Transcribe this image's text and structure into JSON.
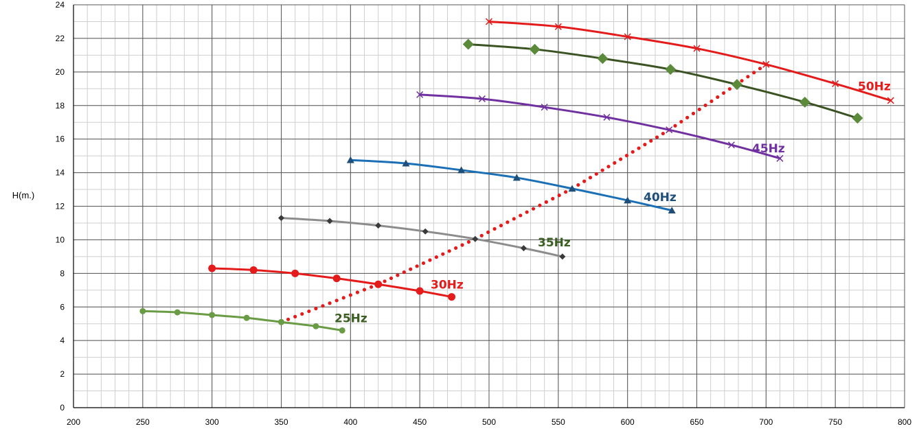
{
  "chart_data": {
    "type": "line",
    "title": "",
    "xlabel": "",
    "ylabel": "H(m.)",
    "xlim": [
      200,
      800
    ],
    "ylim": [
      0,
      24
    ],
    "x_major_step": 50,
    "y_major_step": 2,
    "x_minor_step": 10,
    "y_minor_step": 1,
    "grid": true,
    "x_ticks": [
      "200",
      "250",
      "300",
      "350",
      "400",
      "450",
      "500",
      "550",
      "600",
      "650",
      "700",
      "750",
      "800"
    ],
    "y_ticks": [
      "0",
      "2",
      "4",
      "6",
      "8",
      "10",
      "12",
      "14",
      "16",
      "18",
      "20",
      "22",
      "24"
    ],
    "series": [
      {
        "name": "25Hz",
        "color": "#6a9b45",
        "label_color": "#3b5f22",
        "marker": "circle",
        "label_anchor": [
          487,
          5.1
        ],
        "points": [
          [
            250,
            5.75
          ],
          [
            275,
            5.68
          ],
          [
            300,
            5.52
          ],
          [
            325,
            5.35
          ],
          [
            350,
            5.1
          ],
          [
            375,
            4.85
          ],
          [
            394,
            4.6
          ]
        ]
      },
      {
        "name": "30Hz",
        "color": "#e41b1b",
        "label_color": "#e41b1b",
        "marker": "circle-big",
        "label_anchor": [
          627,
          7.1
        ],
        "points": [
          [
            300,
            8.3
          ],
          [
            330,
            8.2
          ],
          [
            360,
            8.0
          ],
          [
            390,
            7.7
          ],
          [
            420,
            7.35
          ],
          [
            450,
            6.95
          ],
          [
            473,
            6.6
          ]
        ]
      },
      {
        "name": "35Hz",
        "color": "#8c8c8c",
        "label_color": "#3b5f22",
        "marker": "diamond-small",
        "label_anchor": [
          783,
          9.6
        ],
        "points": [
          [
            350,
            11.3
          ],
          [
            385,
            11.12
          ],
          [
            420,
            10.85
          ],
          [
            454,
            10.5
          ],
          [
            490,
            10.05
          ],
          [
            525,
            9.5
          ],
          [
            553,
            9.0
          ]
        ]
      },
      {
        "name": "40Hz",
        "color": "#1a6fb5",
        "label_color": "#1f4e79",
        "marker": "triangle",
        "label_anchor": [
          937,
          12.3
        ],
        "points": [
          [
            400,
            14.75
          ],
          [
            440,
            14.55
          ],
          [
            480,
            14.15
          ],
          [
            520,
            13.7
          ],
          [
            560,
            13.05
          ],
          [
            600,
            12.35
          ],
          [
            632,
            11.75
          ]
        ]
      },
      {
        "name": "45Hz",
        "color": "#7030a0",
        "label_color": "#7030a0",
        "marker": "x",
        "label_anchor": [
          1095,
          15.2
        ],
        "points": [
          [
            450,
            18.65
          ],
          [
            495,
            18.4
          ],
          [
            540,
            17.9
          ],
          [
            585,
            17.3
          ],
          [
            630,
            16.55
          ],
          [
            675,
            15.65
          ],
          [
            710,
            14.85
          ]
        ]
      },
      {
        "name": "",
        "color": "#3b5323",
        "label_color": "#3b5323",
        "marker": "diamond-big",
        "points": [
          [
            485,
            21.65
          ],
          [
            533,
            21.35
          ],
          [
            582,
            20.8
          ],
          [
            631,
            20.15
          ],
          [
            679,
            19.25
          ],
          [
            728,
            18.2
          ],
          [
            766,
            17.25
          ]
        ]
      },
      {
        "name": "50Hz",
        "color": "#e41b1b",
        "label_color": "#e41b1b",
        "marker": "x",
        "label_anchor": [
          1249,
          18.9
        ],
        "points": [
          [
            500,
            23.0
          ],
          [
            550,
            22.7
          ],
          [
            600,
            22.1
          ],
          [
            650,
            21.4
          ],
          [
            700,
            20.45
          ],
          [
            750,
            19.3
          ],
          [
            790,
            18.3
          ]
        ]
      }
    ],
    "system_curve": {
      "name": "",
      "color": "#e41b1b",
      "style": "dotted",
      "points": [
        [
          350,
          5.1
        ],
        [
          420,
          7.35
        ],
        [
          490,
          10.05
        ],
        [
          560,
          13.05
        ],
        [
          630,
          16.55
        ],
        [
          700,
          20.45
        ]
      ]
    }
  }
}
